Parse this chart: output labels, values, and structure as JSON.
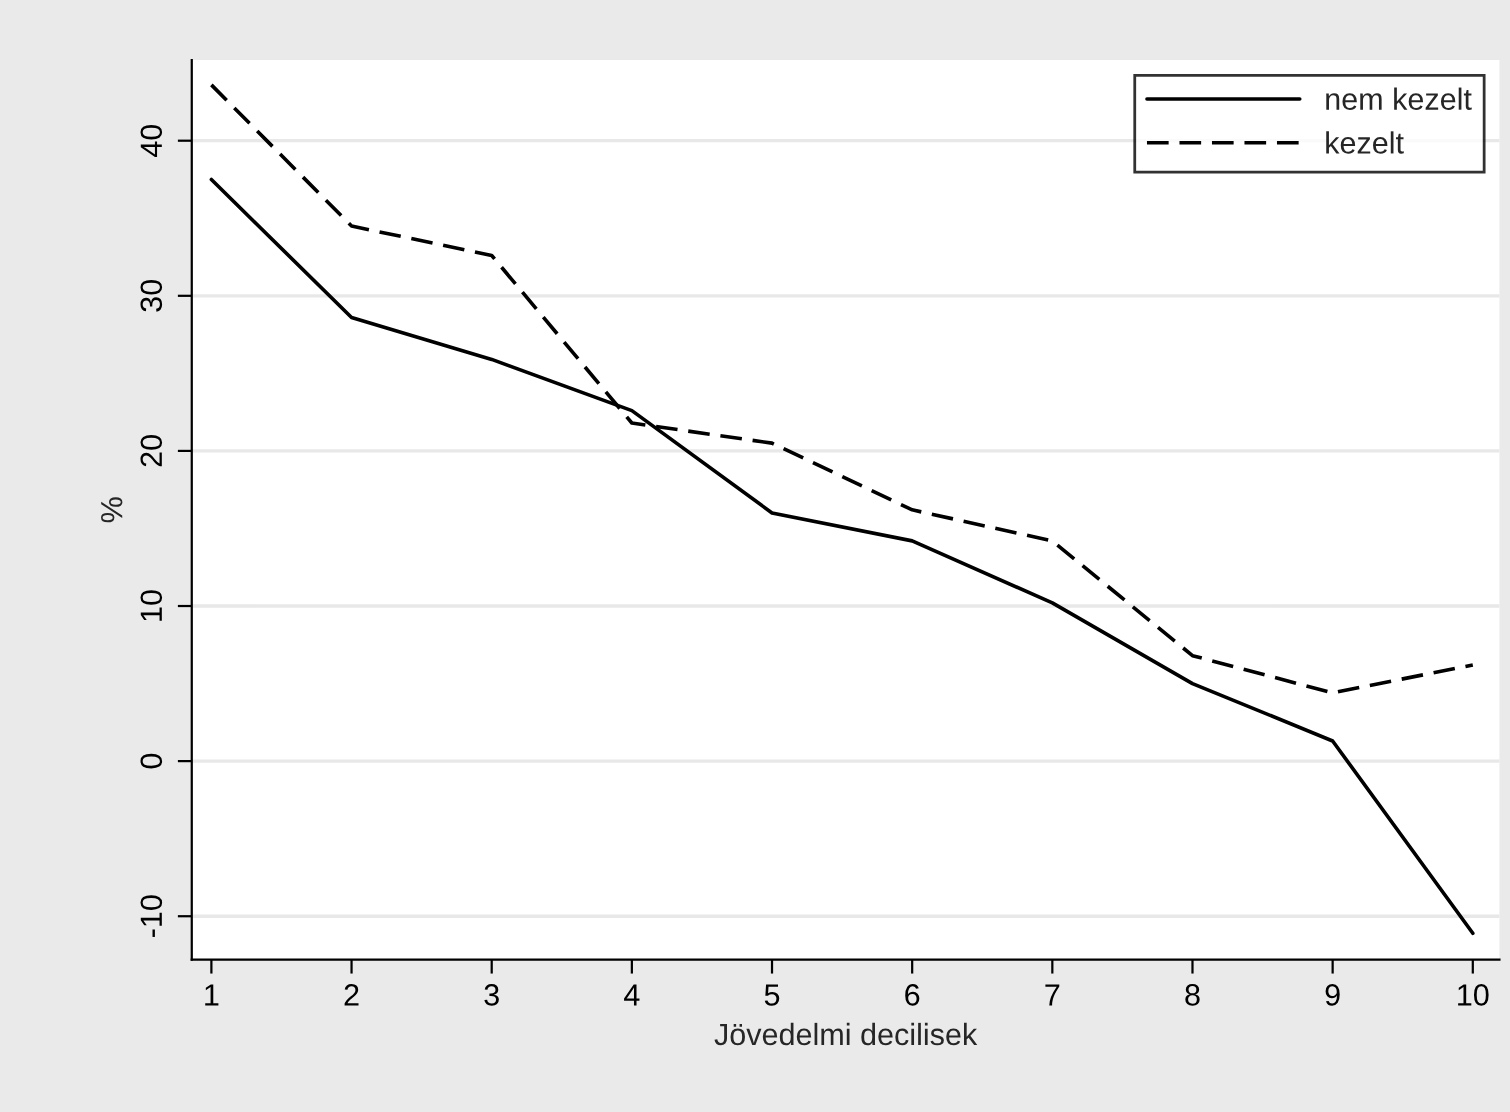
{
  "chart_data": {
    "type": "line",
    "xlabel": "Jövedelmi decilisek",
    "ylabel": "%",
    "x": [
      1,
      2,
      3,
      4,
      5,
      6,
      7,
      8,
      9,
      10
    ],
    "series": [
      {
        "name": "nem kezelt",
        "color": "#000000",
        "line_style": "solid",
        "values": [
          37.5,
          28.6,
          25.9,
          22.6,
          16.0,
          14.2,
          10.2,
          5.0,
          1.3,
          -11.1
        ]
      },
      {
        "name": "kezelt",
        "color": "#000000",
        "line_style": "dashed",
        "values": [
          43.6,
          34.5,
          32.6,
          21.8,
          20.5,
          16.2,
          14.2,
          6.8,
          4.4,
          6.2
        ]
      }
    ],
    "xlim": [
      0.86,
      10.19
    ],
    "ylim": [
      -12.8,
      45.2
    ],
    "xticks": [
      1,
      2,
      3,
      4,
      5,
      6,
      7,
      8,
      9,
      10
    ],
    "yticks": [
      -10,
      0,
      10,
      20,
      30,
      40
    ],
    "grid": "y",
    "legend": "top right"
  }
}
